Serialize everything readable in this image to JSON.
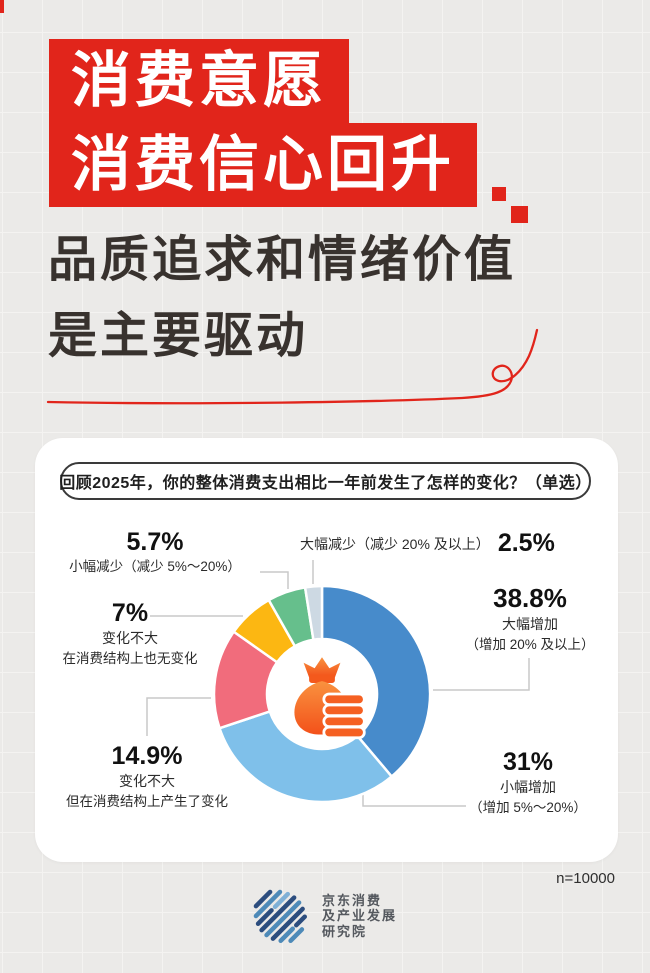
{
  "banner": {
    "line1": "消费意愿",
    "line2": "消费信心回升"
  },
  "heading": {
    "line1": "品质追求和情绪价值",
    "line2": "是主要驱动"
  },
  "accent_color": "#e1251b",
  "card": {
    "question": "回顾2025年，你的整体消费支出相比一年前发生了怎样的变化？（单选）",
    "sample_note": "n=10000"
  },
  "chart_data": {
    "type": "pie",
    "donut": true,
    "title": "回顾2025年，你的整体消费支出相比一年前发生了怎样的变化？（单选）",
    "sample_size": "n=10000",
    "center_icon": "money-bag-icon",
    "start_angle_deg": 0,
    "direction": "clockwise",
    "segments": [
      {
        "label": "大幅增加",
        "detail": "（增加 20% 及以上）",
        "value": 38.8,
        "display": "38.8%",
        "color": "#478bcb"
      },
      {
        "label": "小幅增加",
        "detail": "（增加 5%～20%）",
        "value": 31,
        "display": "31%",
        "color": "#7fc0ea"
      },
      {
        "label": "变化不大",
        "detail": "但在消费结构上产生了变化",
        "value": 14.9,
        "display": "14.9%",
        "color": "#f16c7c"
      },
      {
        "label": "变化不大",
        "detail": "在消费结构上也无变化",
        "value": 7,
        "display": "7%",
        "color": "#fcb712"
      },
      {
        "label": "小幅减少",
        "detail": "（减少 5%～20%）",
        "value": 5.7,
        "display": "5.7%",
        "color": "#66bf8c"
      },
      {
        "label": "大幅减少",
        "detail": "（减少 20% 及以上）",
        "value": 2.5,
        "display": "2.5%",
        "color": "#cdd9e3"
      }
    ]
  },
  "footer": {
    "logo_lines": [
      "京东消费",
      "及产业发展",
      "研究院"
    ]
  }
}
